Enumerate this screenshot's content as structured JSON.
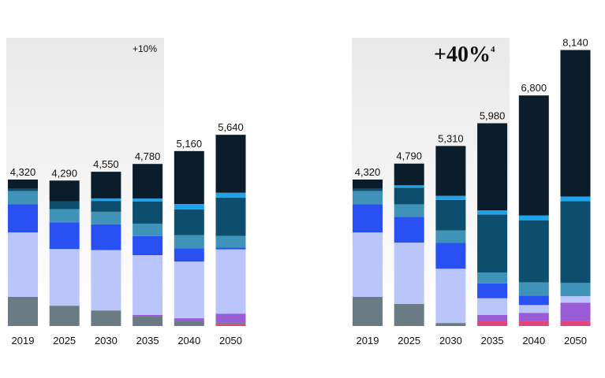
{
  "chart_data": [
    {
      "type": "bar",
      "stacked": true,
      "categories": [
        "2019",
        "2025",
        "2030",
        "2035",
        "2040",
        "2050"
      ],
      "ylim": [
        0,
        8500
      ],
      "annotation": "+10%",
      "totals": [
        4320,
        4290,
        4550,
        4780,
        5160,
        5640
      ],
      "total_labels": [
        "4,320",
        "4,290",
        "4,550",
        "4,780",
        "5,160",
        "5,640"
      ],
      "series": [
        {
          "color": "#e0457b",
          "values": [
            0,
            0,
            0,
            0,
            0,
            50
          ]
        },
        {
          "color": "#6b7b83",
          "values": [
            860,
            600,
            460,
            280,
            140,
            60
          ]
        },
        {
          "color": "#9a5bd6",
          "values": [
            0,
            0,
            0,
            50,
            90,
            250
          ]
        },
        {
          "color": "#b9c5fb",
          "values": [
            1900,
            1670,
            1780,
            1760,
            1670,
            1900
          ]
        },
        {
          "color": "#2850f2",
          "values": [
            830,
            790,
            760,
            560,
            390,
            50
          ]
        },
        {
          "color": "#3f93b8",
          "values": [
            390,
            390,
            370,
            370,
            390,
            350
          ]
        },
        {
          "color": "#0d4d6d",
          "values": [
            70,
            230,
            320,
            650,
            760,
            1130
          ]
        },
        {
          "color": "#1ea3ea",
          "values": [
            0,
            0,
            70,
            90,
            160,
            140
          ]
        },
        {
          "color": "#0b1d2b",
          "values": [
            270,
            610,
            790,
            1020,
            1560,
            1710
          ]
        }
      ]
    },
    {
      "type": "bar",
      "stacked": true,
      "categories": [
        "2019",
        "2025",
        "2030",
        "2035",
        "2040",
        "2050"
      ],
      "ylim": [
        0,
        8500
      ],
      "annotation": "+40%",
      "annotation_note": "4",
      "totals": [
        4320,
        4790,
        5310,
        5980,
        6800,
        8140
      ],
      "total_labels": [
        "4,320",
        "4,790",
        "5,310",
        "5,980",
        "6,800",
        "8,140"
      ],
      "series": [
        {
          "color": "#e0457b",
          "values": [
            0,
            0,
            0,
            140,
            160,
            160
          ]
        },
        {
          "color": "#6b7b83",
          "values": [
            860,
            650,
            90,
            0,
            0,
            0
          ]
        },
        {
          "color": "#9a5bd6",
          "values": [
            0,
            0,
            0,
            190,
            230,
            530
          ]
        },
        {
          "color": "#b9c5fb",
          "values": [
            1900,
            1810,
            1600,
            490,
            230,
            190
          ]
        },
        {
          "color": "#2850f2",
          "values": [
            830,
            760,
            760,
            440,
            280,
            0
          ]
        },
        {
          "color": "#3f93b8",
          "values": [
            390,
            370,
            370,
            320,
            390,
            390
          ]
        },
        {
          "color": "#0d4d6d",
          "values": [
            70,
            490,
            900,
            1710,
            1830,
            2410
          ]
        },
        {
          "color": "#1ea3ea",
          "values": [
            0,
            70,
            120,
            120,
            140,
            140
          ]
        },
        {
          "color": "#0b1d2b",
          "values": [
            270,
            640,
            1470,
            2570,
            3540,
            4320
          ]
        }
      ]
    }
  ]
}
